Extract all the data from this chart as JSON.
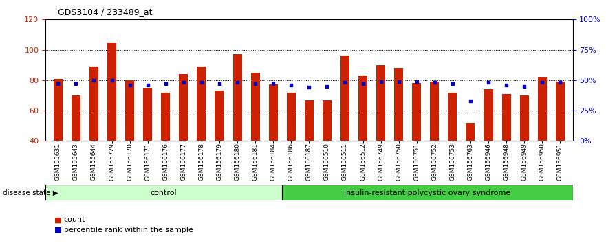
{
  "title": "GDS3104 / 233489_at",
  "samples": [
    "GSM155631",
    "GSM155643",
    "GSM155644",
    "GSM155729",
    "GSM156170",
    "GSM156171",
    "GSM156176",
    "GSM156177",
    "GSM156178",
    "GSM156179",
    "GSM156180",
    "GSM156181",
    "GSM156184",
    "GSM156186",
    "GSM156187",
    "GSM156510",
    "GSM156511",
    "GSM156512",
    "GSM156749",
    "GSM156750",
    "GSM156751",
    "GSM156752",
    "GSM156753",
    "GSM156763",
    "GSM156946",
    "GSM156948",
    "GSM156949",
    "GSM156950",
    "GSM156951"
  ],
  "counts": [
    81,
    70,
    89,
    105,
    80,
    75,
    72,
    84,
    89,
    73,
    97,
    85,
    77,
    72,
    67,
    67,
    96,
    83,
    90,
    88,
    78,
    79,
    72,
    52,
    74,
    71,
    70,
    82,
    79
  ],
  "percentile_ranks": [
    47,
    47,
    50,
    50,
    46,
    46,
    47,
    48,
    48,
    47,
    48,
    47,
    47,
    46,
    44,
    45,
    48,
    47,
    49,
    49,
    49,
    48,
    47,
    33,
    48,
    46,
    45,
    48,
    48
  ],
  "control_count": 13,
  "disease_count": 16,
  "control_label": "control",
  "disease_label": "insulin-resistant polycystic ovary syndrome",
  "disease_state_label": "disease state",
  "bar_color": "#CC2200",
  "dot_color": "#0000CC",
  "ylim_left": [
    40,
    120
  ],
  "ylim_right": [
    0,
    100
  ],
  "yticks_left": [
    40,
    60,
    80,
    100,
    120
  ],
  "yticks_right": [
    0,
    25,
    50,
    75,
    100
  ],
  "ytick_labels_right": [
    "0%",
    "25%",
    "50%",
    "75%",
    "100%"
  ],
  "bg_color": "#FFFFFF",
  "control_bg": "#CCFFCC",
  "disease_bg": "#44CC44",
  "bar_width": 0.5,
  "legend_count_label": "count",
  "legend_pct_label": "percentile rank within the sample"
}
